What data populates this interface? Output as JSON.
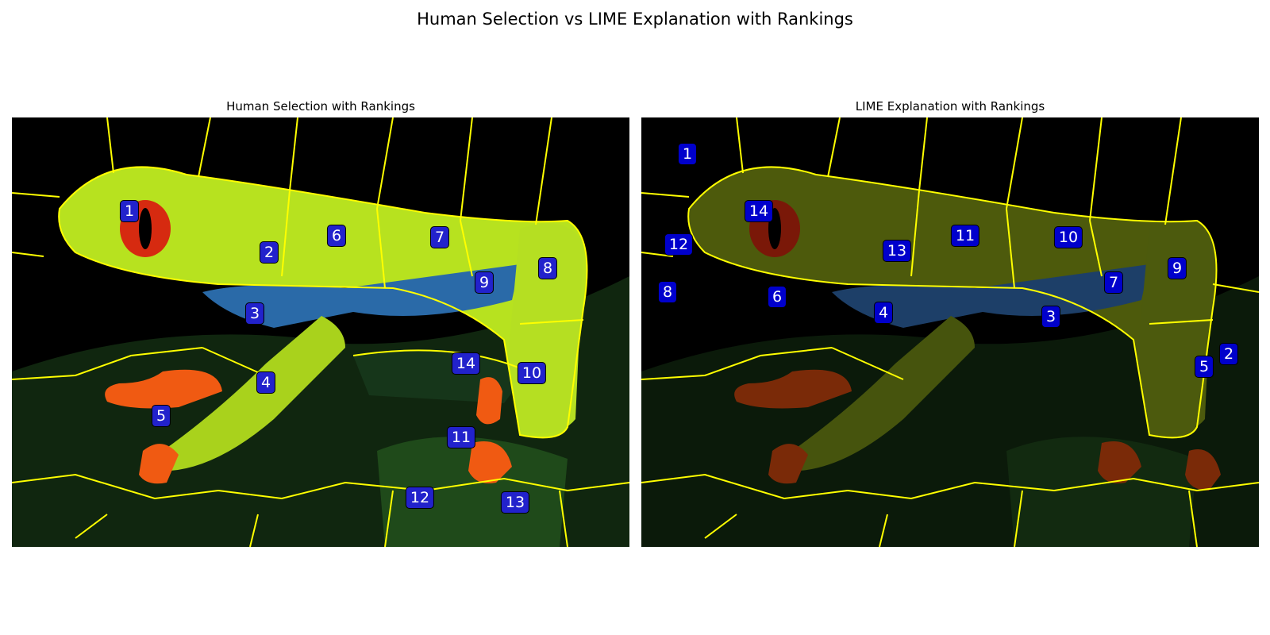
{
  "figure": {
    "title": "Human Selection vs LIME Explanation with Rankings"
  },
  "colors": {
    "segment_boundary": "#ffff00",
    "badge_fill_left": "#2222cc",
    "badge_fill_right": "#0000cc",
    "badge_text": "#ffffff",
    "frog_body": "#b7e21f",
    "frog_eye": "#d62a10",
    "frog_feet": "#f05a12",
    "frog_side_blue": "#2a6aa8",
    "leaf": "#0f2a10",
    "background": "#000000"
  },
  "panels": {
    "left": {
      "title": "Human Selection with Rankings",
      "image_subject": "red-eyed tree frog on leaf (selected segments shown at full brightness)",
      "rankings": [
        "1",
        "2",
        "3",
        "4",
        "5",
        "6",
        "7",
        "8",
        "9",
        "10",
        "11",
        "12",
        "13",
        "14"
      ]
    },
    "right": {
      "title": "LIME Explanation with Rankings",
      "image_subject": "red-eyed tree frog on leaf (dimmed overlay)",
      "rankings": [
        "1",
        "2",
        "3",
        "4",
        "5",
        "6",
        "7",
        "8",
        "9",
        "10",
        "11",
        "12",
        "13",
        "14"
      ]
    }
  }
}
